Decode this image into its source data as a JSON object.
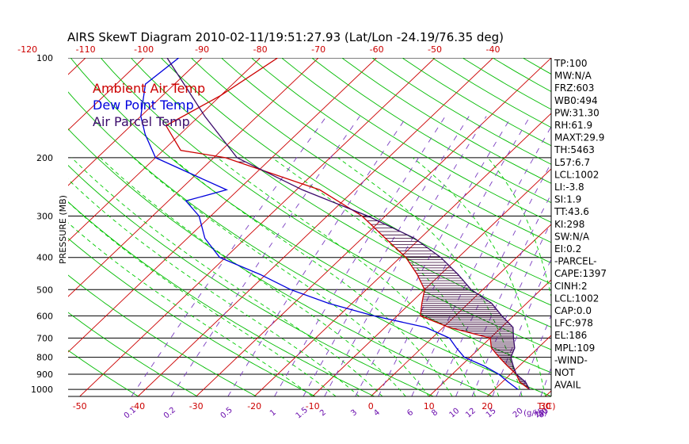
{
  "title": "AIRS SkewT Diagram 2010-02-11/19:51:27.93 (Lat/Lon -24.19/76.35 deg)",
  "colors": {
    "ambient": "#cc0000",
    "dewpoint": "#0000dd",
    "parcel": "#3a0a6a",
    "isotherm": "#cc0000",
    "dry_adiabat": "#00bb00",
    "moist_adiabat": "#00cc00",
    "mixing_ratio": "#7a3cc0",
    "isobar": "#000000",
    "hatch": "#330033"
  },
  "chart_data": {
    "type": "line",
    "subtype": "skew-T log-p diagram",
    "title": "AIRS SkewT Diagram 2010-02-11/19:51:27.93 (Lat/Lon -24.19/76.35 deg)",
    "ylabel": "PRESSURE (MB)",
    "xlabel": "T(C)",
    "mixing_ratio_unit": "(g/kg)",
    "y_scale": "log",
    "ylim": [
      1050,
      100
    ],
    "xlim_bottom_T": [
      -52,
      31
    ],
    "grid": true,
    "legend_position": "top-left",
    "pressure_ticks": [
      100,
      200,
      300,
      400,
      500,
      600,
      700,
      800,
      900,
      1000
    ],
    "temperature_ticks_top": [
      -120,
      -110,
      -100,
      -90,
      -80,
      -70,
      -60,
      -50,
      -40
    ],
    "temperature_ticks_bottom": [
      -50,
      -40,
      -30,
      -20,
      -10,
      0,
      10,
      20,
      30
    ],
    "mixing_ratio_ticks": [
      "0.1",
      "0.2",
      "0.5",
      "1",
      "1.5",
      "2",
      "3",
      "4",
      "6",
      "8",
      "10",
      "12",
      "15",
      "20",
      "25",
      "30",
      "40"
    ],
    "series": [
      {
        "name": "Ambient Air Temp",
        "color": "#cc0000",
        "points": [
          {
            "p": 100,
            "t": -77
          },
          {
            "p": 130,
            "t": -80
          },
          {
            "p": 160,
            "t": -84
          },
          {
            "p": 190,
            "t": -77
          },
          {
            "p": 200,
            "t": -68
          },
          {
            "p": 250,
            "t": -46
          },
          {
            "p": 300,
            "t": -34
          },
          {
            "p": 350,
            "t": -26
          },
          {
            "p": 400,
            "t": -19
          },
          {
            "p": 450,
            "t": -14
          },
          {
            "p": 500,
            "t": -10
          },
          {
            "p": 550,
            "t": -8
          },
          {
            "p": 600,
            "t": -6
          },
          {
            "p": 650,
            "t": 1
          },
          {
            "p": 700,
            "t": 10
          },
          {
            "p": 750,
            "t": 12
          },
          {
            "p": 800,
            "t": 15
          },
          {
            "p": 850,
            "t": 18
          },
          {
            "p": 900,
            "t": 21
          },
          {
            "p": 950,
            "t": 23
          },
          {
            "p": 1000,
            "t": 26
          }
        ]
      },
      {
        "name": "Dew Point Temp",
        "color": "#0000dd",
        "points": [
          {
            "p": 100,
            "t": -94
          },
          {
            "p": 120,
            "t": -95
          },
          {
            "p": 150,
            "t": -90
          },
          {
            "p": 170,
            "t": -86
          },
          {
            "p": 200,
            "t": -80
          },
          {
            "p": 250,
            "t": -62
          },
          {
            "p": 270,
            "t": -67
          },
          {
            "p": 300,
            "t": -62
          },
          {
            "p": 350,
            "t": -57
          },
          {
            "p": 400,
            "t": -51
          },
          {
            "p": 450,
            "t": -41
          },
          {
            "p": 500,
            "t": -33
          },
          {
            "p": 550,
            "t": -24
          },
          {
            "p": 600,
            "t": -14
          },
          {
            "p": 650,
            "t": -3
          },
          {
            "p": 700,
            "t": 3
          },
          {
            "p": 750,
            "t": 6
          },
          {
            "p": 800,
            "t": 9
          },
          {
            "p": 850,
            "t": 14
          },
          {
            "p": 900,
            "t": 18
          },
          {
            "p": 950,
            "t": 21
          },
          {
            "p": 1000,
            "t": 24
          }
        ]
      },
      {
        "name": "Air Parcel Temp",
        "color": "#3a0a6a",
        "points": [
          {
            "p": 100,
            "t": -96
          },
          {
            "p": 150,
            "t": -79
          },
          {
            "p": 200,
            "t": -66
          },
          {
            "p": 250,
            "t": -49
          },
          {
            "p": 300,
            "t": -33
          },
          {
            "p": 350,
            "t": -21
          },
          {
            "p": 400,
            "t": -13
          },
          {
            "p": 450,
            "t": -7
          },
          {
            "p": 500,
            "t": -2
          },
          {
            "p": 550,
            "t": 4
          },
          {
            "p": 600,
            "t": 8
          },
          {
            "p": 650,
            "t": 12
          },
          {
            "p": 700,
            "t": 14
          },
          {
            "p": 750,
            "t": 16
          },
          {
            "p": 800,
            "t": 17
          },
          {
            "p": 850,
            "t": 19
          },
          {
            "p": 900,
            "t": 21
          },
          {
            "p": 950,
            "t": 24
          },
          {
            "p": 1000,
            "t": 26
          }
        ]
      }
    ],
    "indices": [
      "TP:100",
      "MW:N/A",
      "FRZ:603",
      "WB0:494",
      "PW:31.30",
      "RH:61.9",
      "MAXT:29.9",
      "TH:5463",
      "L57:6.7",
      "LCL:1002",
      "LI:-3.8",
      "SI:1.9",
      "TT:43.6",
      "KI:298",
      "SW:N/A",
      "EI:0.2",
      "-PARCEL-",
      "CAPE:1397",
      "CINH:2",
      "LCL:1002",
      "CAP:0.0",
      "LFC:978",
      "EL:186",
      "MPL:109",
      "-WIND-",
      "NOT",
      "AVAIL"
    ]
  }
}
